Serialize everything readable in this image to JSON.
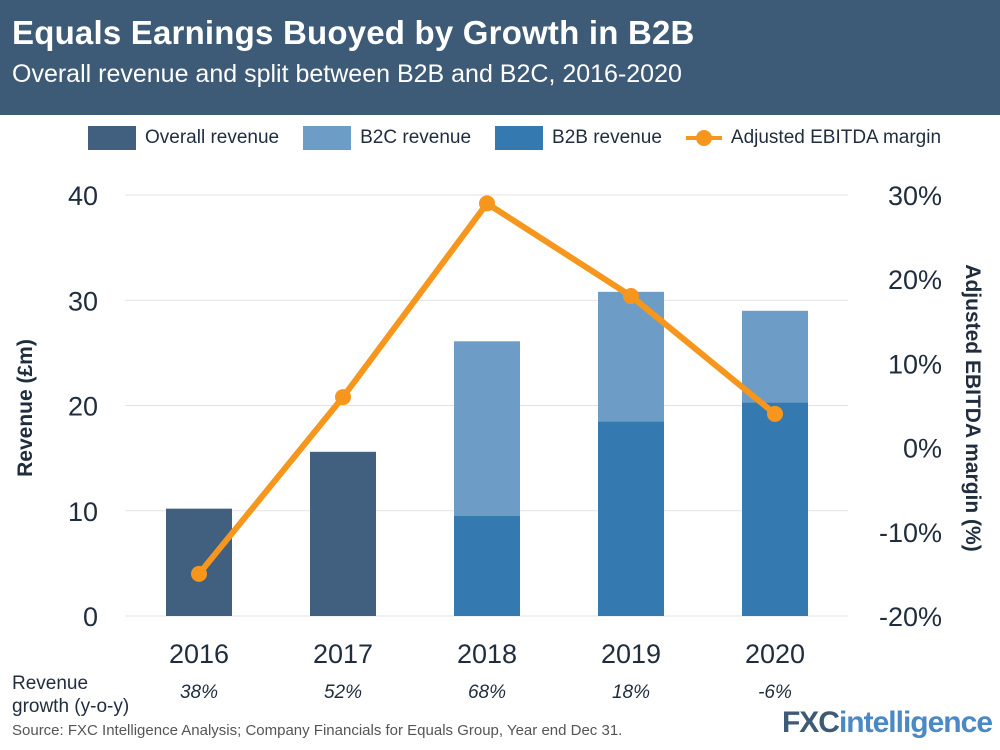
{
  "header": {
    "title": "Equals Earnings Buoyed by Growth in B2B",
    "subtitle": "Overall revenue and split between B2B and B2C, 2016-2020"
  },
  "legend": [
    {
      "label": "Overall revenue",
      "color": "#41607f",
      "kind": "bar"
    },
    {
      "label": "B2C revenue",
      "color": "#6d9dc6",
      "kind": "bar"
    },
    {
      "label": "B2B revenue",
      "color": "#3479b0",
      "kind": "bar"
    },
    {
      "label": "Adjusted EBITDA margin",
      "color": "#f6961c",
      "kind": "line"
    }
  ],
  "growth": {
    "label_line1": "Revenue",
    "label_line2": "growth (y-o-y)",
    "values": [
      "38%",
      "52%",
      "68%",
      "18%",
      "-6%"
    ]
  },
  "footer": {
    "source": "Source: FXC Intelligence Analysis; Company Financials for Equals Group, Year end Dec 31.",
    "logo_fx": "FXC",
    "logo_intel": "intelligence"
  },
  "chart_data": {
    "type": "bar",
    "categories": [
      "2016",
      "2017",
      "2018",
      "2019",
      "2020"
    ],
    "series": [
      {
        "name": "Overall revenue",
        "type": "bar",
        "axis": "left",
        "values": [
          10.2,
          15.6,
          null,
          null,
          null
        ],
        "color": "#41607f"
      },
      {
        "name": "B2B revenue",
        "type": "bar",
        "axis": "left",
        "stack": "split",
        "values": [
          null,
          null,
          9.5,
          18.5,
          20.3
        ],
        "color": "#3479b0"
      },
      {
        "name": "B2C revenue",
        "type": "bar",
        "axis": "left",
        "stack": "split",
        "values": [
          null,
          null,
          16.6,
          12.3,
          8.7
        ],
        "color": "#6d9dc6"
      },
      {
        "name": "Adjusted EBITDA margin",
        "type": "line",
        "axis": "right",
        "values": [
          -15,
          6,
          29,
          18,
          4
        ],
        "color": "#f6961c"
      }
    ],
    "ylabel": "Revenue (£m)",
    "y2label": "Adjusted EBITDA margin (%)",
    "ylim": [
      0,
      40
    ],
    "yticks": [
      "0",
      "10",
      "20",
      "30",
      "40"
    ],
    "y2lim": [
      -20,
      30
    ],
    "y2ticks": [
      "-20%",
      "-10%",
      "0%",
      "10%",
      "20%",
      "30%"
    ],
    "grid": true
  }
}
